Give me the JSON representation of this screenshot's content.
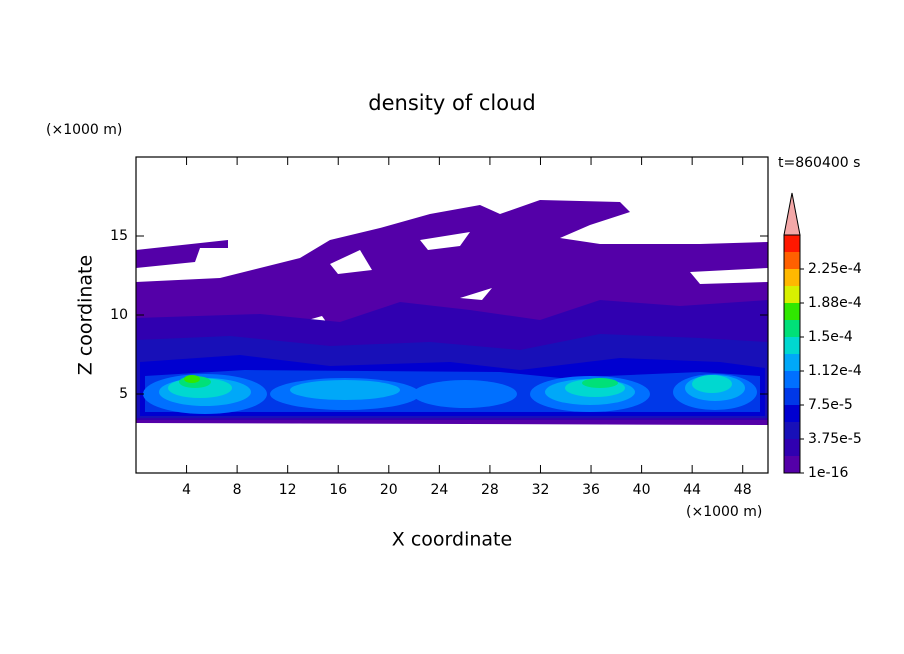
{
  "chart_data": {
    "type": "contour",
    "title": "density of cloud",
    "xlabel": "X coordinate",
    "ylabel": "Z coordinate",
    "x_unit": "(×1000 m)",
    "y_unit": "(×1000 m)",
    "time_label": "t=860400 s",
    "xlim": [
      0,
      50
    ],
    "ylim": [
      0,
      20
    ],
    "xticks": [
      4,
      8,
      12,
      16,
      20,
      24,
      28,
      32,
      36,
      40,
      44,
      48
    ],
    "yticks": [
      5,
      10,
      15
    ],
    "colorbar": {
      "colors": [
        "#5400a8",
        "#3000b0",
        "#1810b8",
        "#0000d0",
        "#0038e8",
        "#0070ff",
        "#00a8f8",
        "#00d8d0",
        "#00e078",
        "#30e800",
        "#d8f000",
        "#ffb800",
        "#ff6000",
        "#ff1800"
      ],
      "extend_color": "#f4a8a8",
      "ticks": [
        {
          "value": 1e-16,
          "label": "1e-16"
        },
        {
          "value": 3.75e-05,
          "label": "3.75e-5"
        },
        {
          "value": 7.5e-05,
          "label": "7.5e-5"
        },
        {
          "value": 0.000112,
          "label": "1.12e-4"
        },
        {
          "value": 0.00015,
          "label": "1.5e-4"
        },
        {
          "value": 0.000188,
          "label": "1.88e-4"
        },
        {
          "value": 0.000225,
          "label": "2.25e-4"
        }
      ]
    }
  }
}
